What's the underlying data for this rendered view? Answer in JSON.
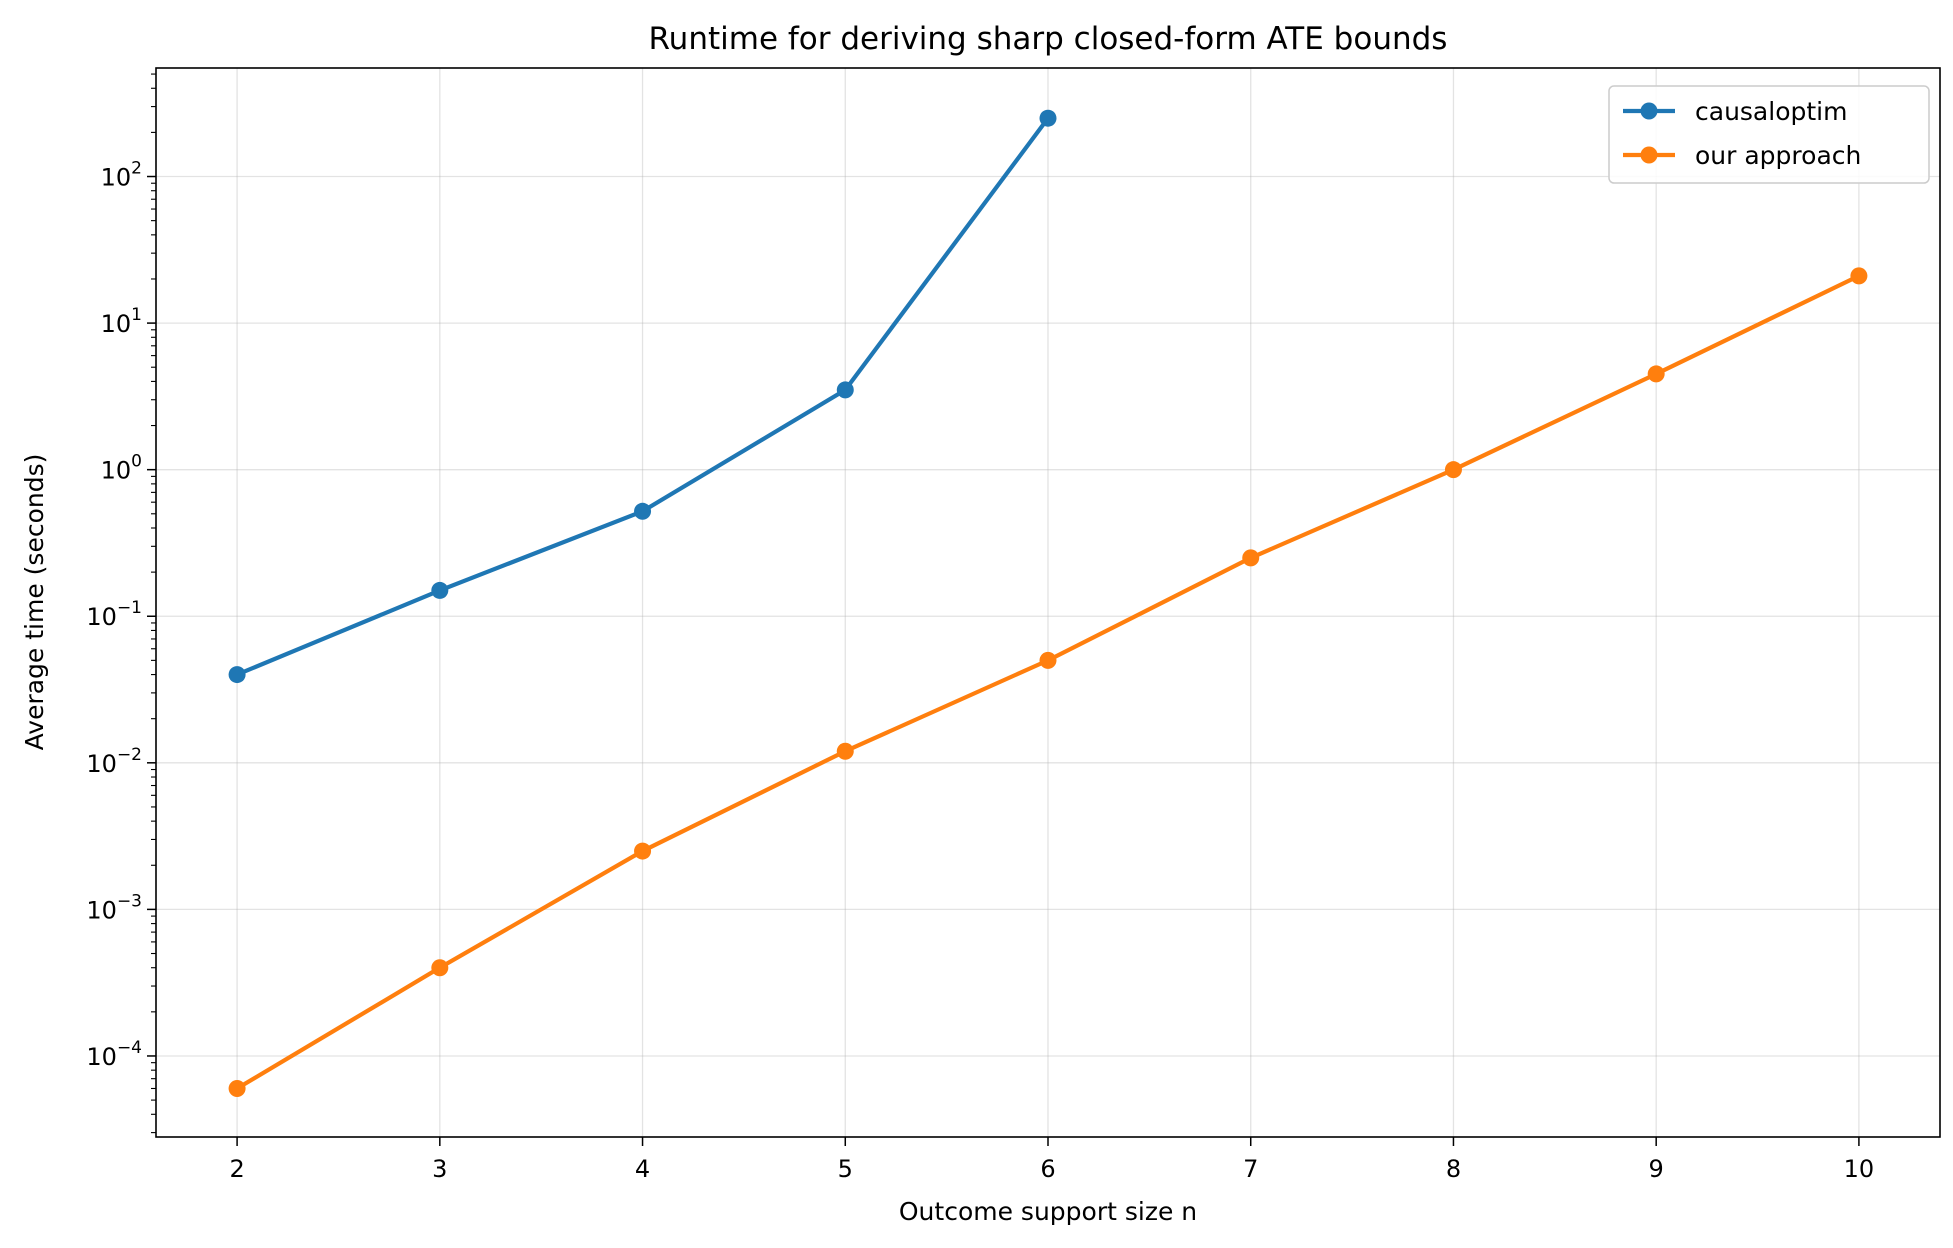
{
  "chart_data": {
    "type": "line",
    "title": "Runtime for deriving sharp closed-form ATE bounds",
    "xlabel": "Outcome support size n",
    "ylabel": "Average time (seconds)",
    "yscale": "log",
    "xlim": [
      1.6,
      10.4
    ],
    "ylim": [
      2.8e-05,
      550
    ],
    "x_ticks": [
      2,
      3,
      4,
      5,
      6,
      7,
      8,
      9,
      10
    ],
    "y_ticks": [
      {
        "value": 0.0001,
        "base": "10",
        "exp": "−4"
      },
      {
        "value": 0.001,
        "base": "10",
        "exp": "−3"
      },
      {
        "value": 0.01,
        "base": "10",
        "exp": "−2"
      },
      {
        "value": 0.1,
        "base": "10",
        "exp": "−1"
      },
      {
        "value": 1,
        "base": "10",
        "exp": "0"
      },
      {
        "value": 10,
        "base": "10",
        "exp": "1"
      },
      {
        "value": 100,
        "base": "10",
        "exp": "2"
      }
    ],
    "grid": true,
    "legend_position": "top-right",
    "series": [
      {
        "name": "causaloptim",
        "color": "#1f77b4",
        "x": [
          2,
          3,
          4,
          5,
          6
        ],
        "values": [
          0.04,
          0.15,
          0.52,
          3.5,
          250
        ]
      },
      {
        "name": "our approach",
        "color": "#ff7f0e",
        "x": [
          2,
          3,
          4,
          5,
          6,
          7,
          8,
          9,
          10
        ],
        "values": [
          6e-05,
          0.0004,
          0.0025,
          0.012,
          0.05,
          0.25,
          1.0,
          4.5,
          21
        ]
      }
    ]
  }
}
